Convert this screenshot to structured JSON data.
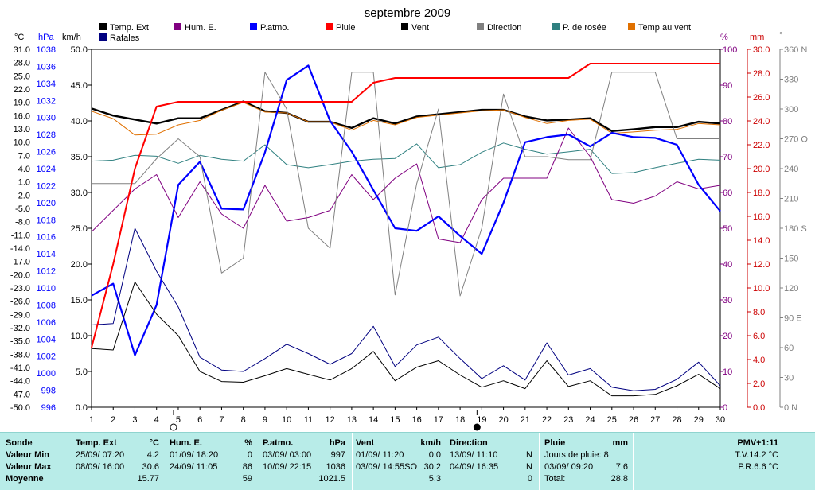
{
  "title": "septembre 2009",
  "unit_labels": {
    "temp": "°C",
    "press": "hPa",
    "wind": "km/h",
    "hum": "%",
    "rain": "mm",
    "dir": "°"
  },
  "legend": [
    {
      "label": "Temp. Ext",
      "color": "#000000"
    },
    {
      "label": "Hum. E.",
      "color": "#800080"
    },
    {
      "label": "P.atmo.",
      "color": "#0000ff"
    },
    {
      "label": "Pluie",
      "color": "#ff0000"
    },
    {
      "label": "Vent",
      "color": "#000000"
    },
    {
      "label": "Direction",
      "color": "#808080"
    },
    {
      "label": "P. de rosée",
      "color": "#2f8080"
    },
    {
      "label": "Temp au vent",
      "color": "#e07000"
    },
    {
      "label": "Rafales",
      "color": "#000080"
    }
  ],
  "chart_data": {
    "type": "line",
    "title": "septembre 2009",
    "x": [
      1,
      2,
      3,
      4,
      5,
      6,
      7,
      8,
      9,
      10,
      11,
      12,
      13,
      14,
      15,
      16,
      17,
      18,
      19,
      20,
      21,
      22,
      23,
      24,
      25,
      26,
      27,
      28,
      29,
      30
    ],
    "axes": {
      "wind": {
        "unit": "km/h",
        "range": [
          0,
          50
        ],
        "ticks": [
          "0.0",
          "5.0",
          "10.0",
          "15.0",
          "20.0",
          "25.0",
          "30.0",
          "35.0",
          "40.0",
          "45.0",
          "50.0"
        ]
      },
      "temp": {
        "unit": "°C",
        "range": [
          -50,
          31
        ],
        "ticks": [
          "-50.0",
          "-47.0",
          "-44.0",
          "-41.0",
          "-38.0",
          "-35.0",
          "-32.0",
          "-29.0",
          "-26.0",
          "-23.0",
          "-20.0",
          "-17.0",
          "-14.0",
          "-11.0",
          "-8.0",
          "-5.0",
          "-2.0",
          "1.0",
          "4.0",
          "7.0",
          "10.0",
          "13.0",
          "16.0",
          "19.0",
          "22.0",
          "25.0",
          "28.0",
          "31.0"
        ]
      },
      "press": {
        "unit": "hPa",
        "range": [
          996,
          1038
        ],
        "ticks": [
          "996",
          "998",
          "1000",
          "1002",
          "1004",
          "1006",
          "1008",
          "1010",
          "1012",
          "1014",
          "1016",
          "1018",
          "1020",
          "1022",
          "1024",
          "1026",
          "1028",
          "1030",
          "1032",
          "1034",
          "1036",
          "1038"
        ]
      },
      "hum": {
        "unit": "%",
        "range": [
          0,
          100
        ],
        "ticks": [
          "0",
          "10",
          "20",
          "30",
          "40",
          "50",
          "60",
          "70",
          "80",
          "90",
          "100"
        ]
      },
      "rain": {
        "unit": "mm",
        "range": [
          0,
          30
        ],
        "ticks": [
          "0.0",
          "2.0",
          "4.0",
          "6.0",
          "8.0",
          "10.0",
          "12.0",
          "14.0",
          "16.0",
          "18.0",
          "20.0",
          "22.0",
          "24.0",
          "26.0",
          "28.0",
          "30.0"
        ]
      },
      "dir": {
        "unit": "°",
        "range": [
          0,
          360
        ],
        "ticks": [
          "0 N",
          "30",
          "60",
          "90 E",
          "120",
          "150",
          "180 S",
          "210",
          "240",
          "270 O",
          "300",
          "330",
          "360 N"
        ]
      }
    },
    "series": [
      {
        "name": "Temp. Ext",
        "axis": "temp",
        "color": "#000000",
        "width": 2.4,
        "values": [
          17.6,
          16.0,
          15.1,
          14.2,
          15.4,
          15.4,
          17.3,
          19.2,
          17.0,
          16.6,
          14.6,
          14.6,
          13.2,
          15.4,
          14.2,
          15.8,
          16.3,
          16.8,
          17.3,
          17.3,
          15.8,
          14.9,
          15.1,
          15.4,
          12.5,
          12.9,
          13.4,
          13.4,
          14.6,
          14.2
        ]
      },
      {
        "name": "Temp au vent",
        "axis": "temp",
        "color": "#e07000",
        "width": 1,
        "values": [
          17.0,
          15.3,
          11.6,
          11.8,
          13.9,
          14.9,
          17.2,
          19.0,
          16.8,
          16.6,
          14.6,
          14.6,
          12.7,
          14.9,
          13.9,
          15.6,
          16.1,
          16.6,
          17.1,
          17.3,
          15.6,
          14.2,
          14.9,
          15.2,
          12.0,
          12.3,
          12.7,
          12.9,
          14.2,
          13.9
        ]
      },
      {
        "name": "P. de rosée",
        "axis": "temp",
        "color": "#2f8080",
        "width": 1,
        "values": [
          5.7,
          5.9,
          7.0,
          6.8,
          5.2,
          7.0,
          6.1,
          5.7,
          9.4,
          4.9,
          4.2,
          4.9,
          5.7,
          6.1,
          6.3,
          9.6,
          4.2,
          4.9,
          7.7,
          9.8,
          8.4,
          7.3,
          7.8,
          8.4,
          2.9,
          3.1,
          4.2,
          5.2,
          6.1,
          5.9
        ]
      },
      {
        "name": "Hum. E.",
        "axis": "hum",
        "color": "#800080",
        "width": 1,
        "values": [
          49,
          55,
          61,
          65,
          53,
          63,
          54,
          50,
          62,
          52,
          53,
          55,
          65,
          58,
          64,
          68,
          47,
          46,
          58,
          64,
          64,
          64,
          78,
          70,
          58,
          57,
          59,
          63,
          61,
          62
        ]
      },
      {
        "name": "P.atmo.",
        "axis": "press",
        "color": "#0000ff",
        "width": 2.2,
        "values": [
          1009.1,
          1010.5,
          1002.1,
          1008.0,
          1022.1,
          1024.8,
          1019.3,
          1019.2,
          1025.9,
          1034.4,
          1036.1,
          1029.6,
          1026.0,
          1021.5,
          1017.0,
          1016.7,
          1018.4,
          1016.1,
          1014.0,
          1020.0,
          1027.1,
          1027.7,
          1028.0,
          1026.6,
          1028.2,
          1027.7,
          1027.6,
          1026.8,
          1022.1,
          1019.0
        ]
      },
      {
        "name": "Rafales",
        "axis": "wind",
        "color": "#000080",
        "width": 1,
        "values": [
          11.5,
          11.7,
          25.0,
          19.0,
          14.0,
          7.0,
          5.2,
          5.0,
          6.8,
          8.8,
          7.5,
          6.0,
          7.5,
          11.3,
          5.7,
          8.7,
          9.8,
          6.8,
          4.0,
          5.8,
          3.8,
          9.0,
          4.5,
          5.4,
          2.8,
          2.3,
          2.5,
          3.9,
          6.3,
          3.0
        ]
      },
      {
        "name": "Vent",
        "axis": "wind",
        "color": "#000000",
        "width": 1,
        "values": [
          8.2,
          8.0,
          17.5,
          13.0,
          10.0,
          5.0,
          3.6,
          3.5,
          4.4,
          5.4,
          4.6,
          3.8,
          5.4,
          7.8,
          3.7,
          5.6,
          6.5,
          4.5,
          2.8,
          3.7,
          2.6,
          6.5,
          2.9,
          3.7,
          1.6,
          1.6,
          1.8,
          3.0,
          4.6,
          2.6
        ]
      },
      {
        "name": "Direction",
        "axis": "dir",
        "color": "#808080",
        "width": 1,
        "values": [
          225,
          225,
          225,
          250,
          270,
          252,
          135,
          150,
          337,
          300,
          180,
          160,
          337,
          337,
          113,
          225,
          300,
          112,
          180,
          315,
          252,
          252,
          249,
          249,
          337,
          337,
          337,
          270,
          270,
          270
        ]
      },
      {
        "name": "Pluie",
        "axis": "rain",
        "color": "#ff0000",
        "width": 2,
        "values": [
          5.0,
          12.0,
          20.0,
          25.2,
          25.6,
          25.6,
          25.6,
          25.6,
          25.6,
          25.6,
          25.6,
          25.6,
          25.6,
          27.2,
          27.6,
          27.6,
          27.6,
          27.6,
          27.6,
          27.6,
          27.6,
          27.6,
          27.6,
          28.8,
          28.8,
          28.8,
          28.8,
          28.8,
          28.8,
          28.8
        ]
      }
    ],
    "moon_markers": [
      {
        "x": 5,
        "phase": "empty"
      },
      {
        "x": 19,
        "phase": "full"
      }
    ],
    "grid": false
  },
  "stats": {
    "sonde": {
      "title": "Sonde",
      "rows": [
        "Valeur Min",
        "Valeur Max",
        "Moyenne"
      ]
    },
    "temp": {
      "title": "Temp. Ext",
      "unit": "°C",
      "min_time": "25/09/ 07:20",
      "min_val": "4.2",
      "max_time": "08/09/ 16:00",
      "max_val": "30.6",
      "avg": "15.77"
    },
    "hum": {
      "title": "Hum. E.",
      "unit": "%",
      "min_time": "01/09/ 18:20",
      "min_val": "0",
      "max_time": "24/09/ 11:05",
      "max_val": "86",
      "avg": "59"
    },
    "press": {
      "title": "P.atmo.",
      "unit": "hPa",
      "min_time": "03/09/ 03:00",
      "min_val": "997",
      "max_time": "10/09/ 22:15",
      "max_val": "1036",
      "avg": "1021.5"
    },
    "wind": {
      "title": "Vent",
      "unit": "km/h",
      "min_time": "01/09/ 11:20",
      "min_val": "0.0",
      "max_time": "03/09/ 14:55SO",
      "max_val": "30.2",
      "avg": "5.3"
    },
    "dir": {
      "title": "Direction",
      "min_time": "13/09/ 11:10",
      "min_val": "N",
      "max_time": "04/09/ 16:35",
      "max_val": "N",
      "avg": "0"
    },
    "rain": {
      "title": "Pluie",
      "unit": "mm",
      "row1": "Jours de pluie: 8",
      "max_time": "03/09/ 09:20",
      "max_val": "7.6",
      "total_label": "Total:",
      "total": "28.8"
    },
    "pmv": {
      "title": "PMV+1:11",
      "tv": "T.V.14.2 °C",
      "pr": "P.R.6.6 °C"
    }
  }
}
